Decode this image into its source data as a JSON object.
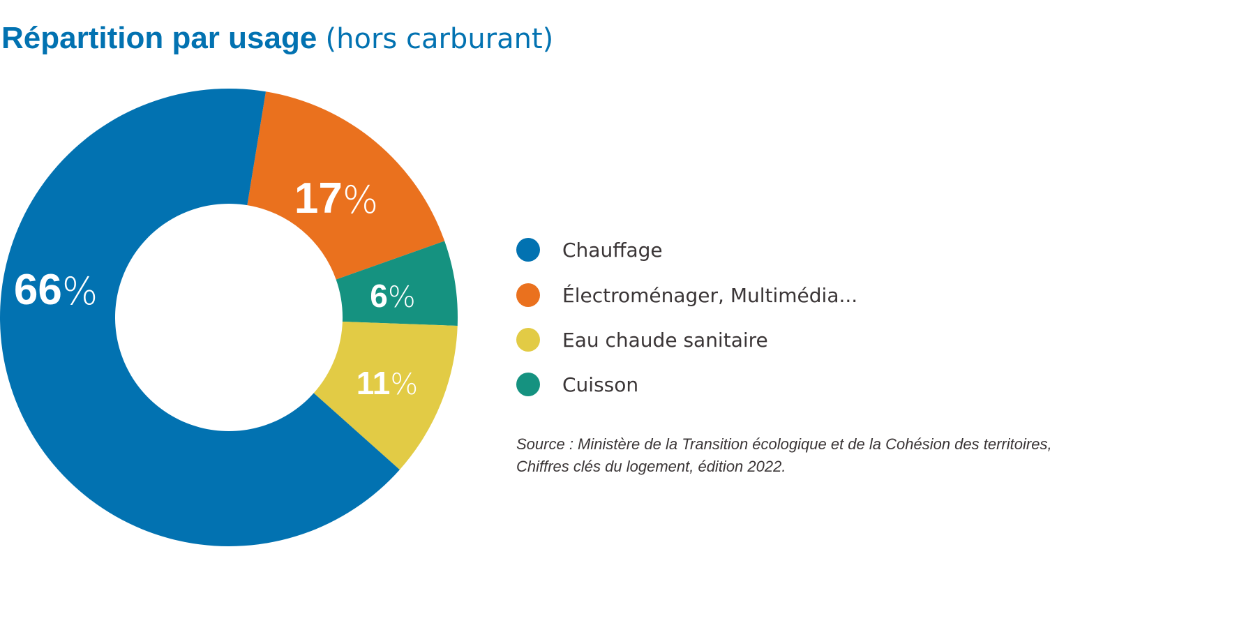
{
  "chart_data": {
    "type": "pie",
    "variant": "donut",
    "title": "Répartition par usage",
    "subtitle": "(hors carburant)",
    "slices": [
      {
        "label": "Électroménager, Multimédia...",
        "value": 17,
        "color": "#EA711E"
      },
      {
        "label": "Cuisson",
        "value": 6,
        "color": "#159280"
      },
      {
        "label": "Eau chaude sanitaire",
        "value": 11,
        "color": "#E2CB45"
      },
      {
        "label": "Chauffage",
        "value": 66,
        "color": "#0272B1"
      }
    ],
    "data_labels": [
      {
        "number": "17",
        "unit": "%"
      },
      {
        "number": "6",
        "unit": "%"
      },
      {
        "number": "11",
        "unit": "%"
      },
      {
        "number": "66",
        "unit": "%"
      }
    ],
    "legend": [
      {
        "label": "Chauffage",
        "color": "#0272B1"
      },
      {
        "label": "Électroménager, Multimédia...",
        "color": "#EA711E"
      },
      {
        "label": "Eau chaude sanitaire",
        "color": "#E2CB45"
      },
      {
        "label": "Cuisson",
        "color": "#159280"
      }
    ],
    "legend_position": "right"
  },
  "source": {
    "line1": "Source : Ministère de la Transition écologique et de la Cohésion des territoires,",
    "line2": "Chiffres clés du logement, édition 2022."
  }
}
